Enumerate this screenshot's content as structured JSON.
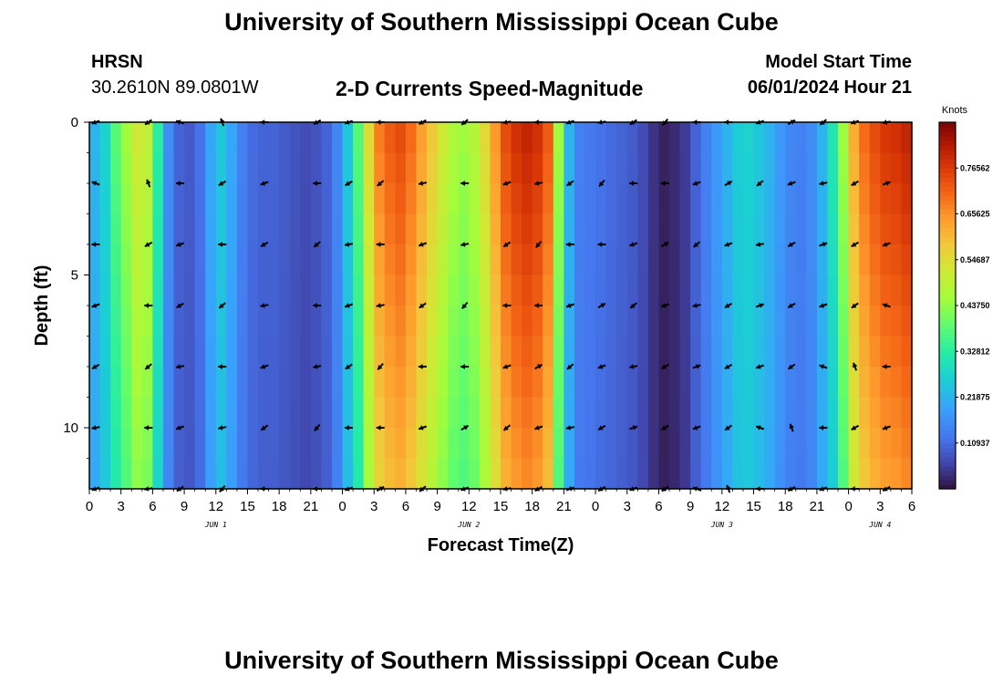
{
  "header": {
    "title": "University of Southern Mississippi Ocean Cube",
    "station": "HRSN",
    "coords": "30.2610N  89.0801W",
    "subtitle": "2-D Currents Speed-Magnitude",
    "start_label": "Model Start Time",
    "start_value": "06/01/2024 Hour 21"
  },
  "footer": {
    "title": "University of Southern Mississippi Ocean Cube"
  },
  "chart_data": {
    "type": "heatmap",
    "xlabel": "Forecast Time(Z)",
    "ylabel": "Depth (ft)",
    "xlim": [
      0,
      78
    ],
    "ylim": [
      0,
      12
    ],
    "x_tick_hours": [
      0,
      3,
      6,
      9,
      12,
      15,
      18,
      21,
      24,
      27,
      30,
      33,
      36,
      39,
      42,
      45,
      48,
      51,
      54,
      57,
      60,
      63,
      66,
      69,
      72,
      75,
      78
    ],
    "x_tick_labels": [
      "0",
      "3",
      "6",
      "9",
      "12",
      "15",
      "18",
      "21",
      "0",
      "3",
      "6",
      "9",
      "12",
      "15",
      "18",
      "21",
      "0",
      "3",
      "6",
      "9",
      "12",
      "15",
      "18",
      "21",
      "0",
      "3",
      "6"
    ],
    "y_ticks": [
      0,
      5,
      10
    ],
    "y_tick_labels": [
      "0",
      "5",
      "10"
    ],
    "day_labels": [
      {
        "hour": 12,
        "text": "JUN 1"
      },
      {
        "hour": 36,
        "text": "JUN 2"
      },
      {
        "hour": 60,
        "text": "JUN 3"
      },
      {
        "hour": 75,
        "text": "JUN 4"
      }
    ],
    "colorbar": {
      "units": "Knots",
      "min": 0,
      "max": 0.875,
      "ticks": [
        0.10937,
        0.21875,
        0.32812,
        0.4375,
        0.54687,
        0.65625,
        0.76562
      ],
      "tick_labels": [
        "0.10937",
        "0.21875",
        "0.32812",
        "0.43750",
        "0.54687",
        "0.65625",
        "0.76562"
      ]
    },
    "speed_profile": {
      "hours": [
        0,
        1,
        2,
        3,
        4,
        5,
        6,
        7,
        8,
        9,
        10,
        11,
        12,
        13,
        14,
        15,
        16,
        17,
        18,
        19,
        20,
        21,
        22,
        23,
        24,
        25,
        26,
        27,
        28,
        29,
        30,
        31,
        32,
        33,
        34,
        35,
        36,
        37,
        38,
        39,
        40,
        41,
        42,
        43,
        44,
        45,
        46,
        47,
        48,
        49,
        50,
        51,
        52,
        53,
        54,
        55,
        56,
        57,
        58,
        59,
        60,
        61,
        62,
        63,
        64,
        65,
        66,
        67,
        68,
        69,
        70,
        71,
        72,
        73,
        74,
        75,
        76,
        77
      ],
      "speed_knots": [
        0.22,
        0.27,
        0.38,
        0.45,
        0.52,
        0.5,
        0.33,
        0.16,
        0.1,
        0.09,
        0.12,
        0.2,
        0.25,
        0.2,
        0.14,
        0.11,
        0.1,
        0.1,
        0.09,
        0.08,
        0.07,
        0.08,
        0.1,
        0.15,
        0.25,
        0.38,
        0.55,
        0.68,
        0.72,
        0.74,
        0.7,
        0.64,
        0.58,
        0.52,
        0.47,
        0.45,
        0.48,
        0.55,
        0.65,
        0.74,
        0.78,
        0.8,
        0.78,
        0.72,
        0.45,
        0.22,
        0.14,
        0.13,
        0.12,
        0.11,
        0.1,
        0.09,
        0.07,
        0.04,
        0.02,
        0.03,
        0.05,
        0.1,
        0.14,
        0.18,
        0.22,
        0.26,
        0.27,
        0.25,
        0.22,
        0.18,
        0.15,
        0.14,
        0.16,
        0.22,
        0.31,
        0.45,
        0.62,
        0.7,
        0.74,
        0.77,
        0.78,
        0.8
      ]
    },
    "vector_rows_ft": [
      0,
      2,
      4,
      6,
      8,
      10,
      12
    ]
  }
}
